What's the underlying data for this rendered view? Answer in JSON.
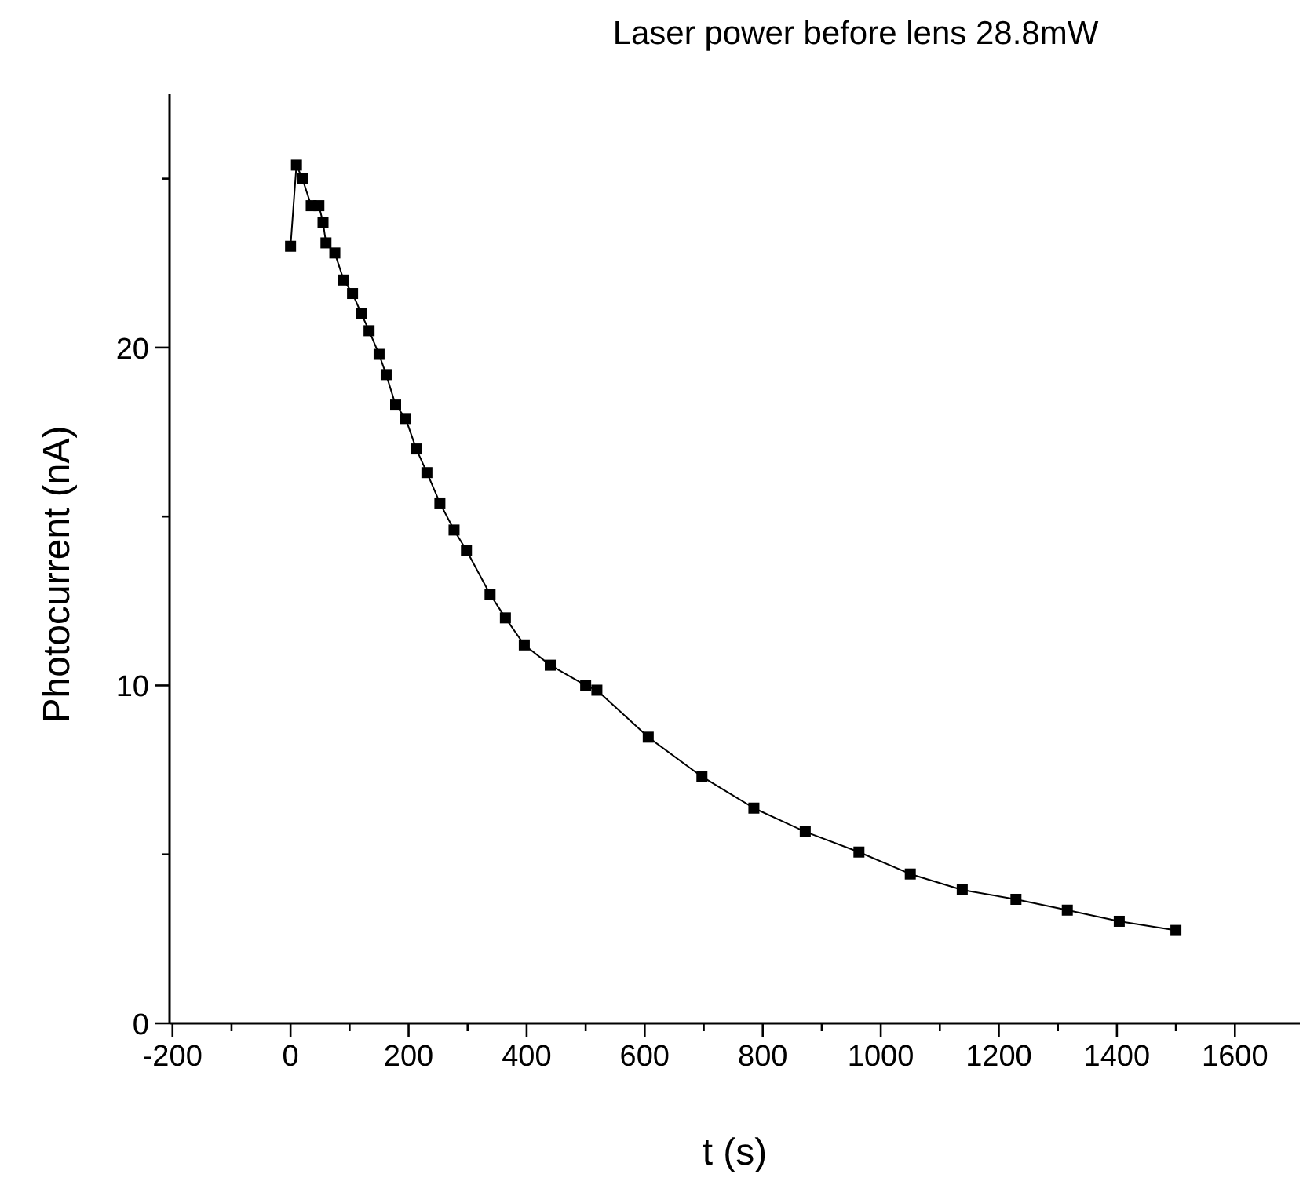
{
  "chart_data": {
    "type": "line",
    "title": "Laser power before lens 28.8mW",
    "xlabel": "t (s)",
    "ylabel": "Photocurrent (nA)",
    "x": [
      0,
      10,
      20,
      35,
      48,
      55,
      60,
      75,
      90,
      105,
      120,
      133,
      150,
      162,
      178,
      195,
      213,
      231,
      253,
      277,
      298,
      338,
      364,
      396,
      440,
      500,
      519,
      606,
      697,
      785,
      872,
      963,
      1050,
      1138,
      1229,
      1316,
      1404,
      1500
    ],
    "series": [
      {
        "color": "#000000",
        "values": [
          23.0,
          25.4,
          25.0,
          24.2,
          24.2,
          23.7,
          23.1,
          22.8,
          22.0,
          21.6,
          21.0,
          20.5,
          19.8,
          19.2,
          18.3,
          17.9,
          17.0,
          16.3,
          15.4,
          14.6,
          14.0,
          12.7,
          12.0,
          11.2,
          10.6,
          10.0,
          9.86,
          8.47,
          7.3,
          6.37,
          5.67,
          5.07,
          4.42,
          3.95,
          3.67,
          3.35,
          3.02,
          2.75
        ]
      }
    ],
    "xlim": [
      -205,
      1710
    ],
    "ylim": [
      0,
      27.5
    ],
    "xticks": [
      -200,
      {
        "value": -100,
        "label": null
      },
      0,
      {
        "value": 100,
        "label": null
      },
      200,
      {
        "value": 300,
        "label": null
      },
      400,
      {
        "value": 500,
        "label": null
      },
      600,
      {
        "value": 700,
        "label": null
      },
      800,
      {
        "value": 900,
        "label": null
      },
      1000,
      {
        "value": 1100,
        "label": null
      },
      1200,
      {
        "value": 1300,
        "label": null
      },
      1400,
      {
        "value": 1500,
        "label": null
      },
      1600
    ],
    "yticks": [
      0,
      {
        "value": 5,
        "label": null
      },
      10,
      {
        "value": 15,
        "label": null
      },
      20,
      {
        "value": 25,
        "label": null
      }
    ],
    "marker": "square",
    "line_style": "solid",
    "grid": false
  }
}
